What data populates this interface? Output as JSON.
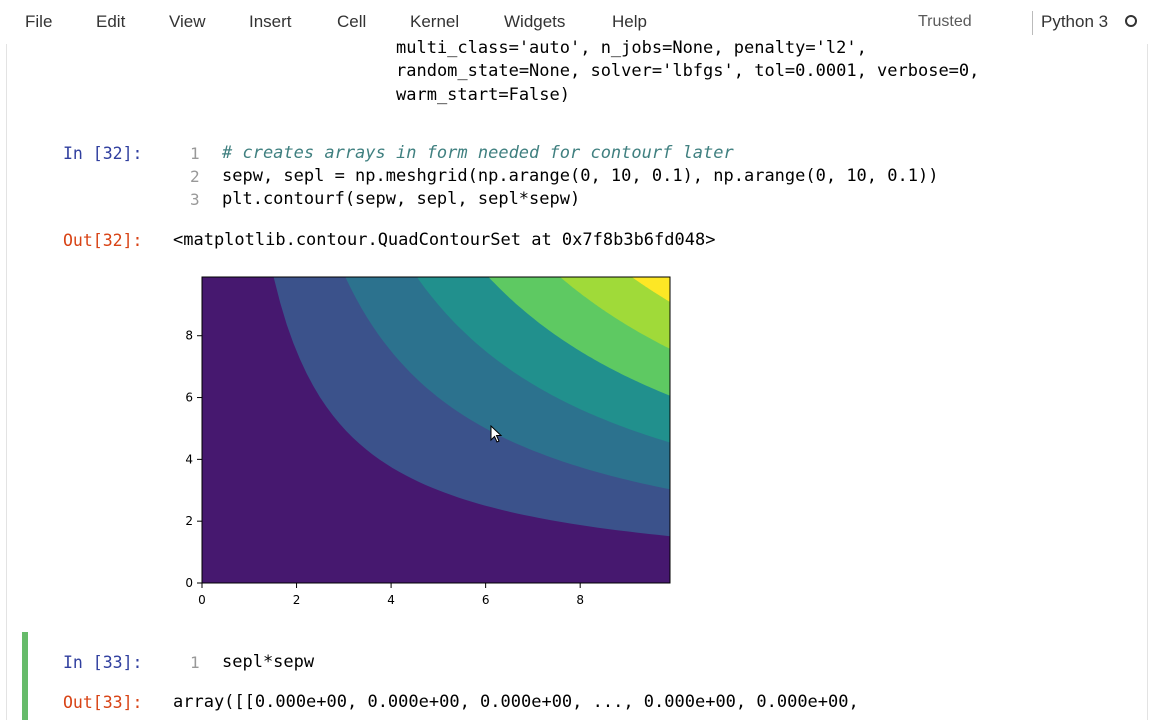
{
  "menu": {
    "items": [
      "File",
      "Edit",
      "View",
      "Insert",
      "Cell",
      "Kernel",
      "Widgets",
      "Help"
    ],
    "trusted": "Trusted",
    "kernel_name": "Python 3"
  },
  "prev_output": {
    "lines": [
      "multi_class='auto', n_jobs=None, penalty='l2',",
      "random_state=None, solver='lbfgs', tol=0.0001, verbose=0,",
      "warm_start=False)"
    ]
  },
  "cell32": {
    "in_prompt": "In [32]:",
    "line_numbers": [
      "1",
      "2",
      "3"
    ],
    "code": [
      "# creates arrays in form needed for contourf later",
      "sepw, sepl = np.meshgrid(np.arange(0, 10, 0.1), np.arange(0, 10, 0.1))",
      "plt.contourf(sepw, sepl, sepl*sepw)"
    ],
    "out_prompt": "Out[32]:",
    "out_text": "<matplotlib.contour.QuadContourSet at 0x7f8b3b6fd048>"
  },
  "cell33": {
    "in_prompt": "In [33]:",
    "line_numbers": [
      "1"
    ],
    "code": [
      "sepl*sepw"
    ],
    "out_prompt": "Out[33]:",
    "out_text": "array([[0.000e+00, 0.000e+00, 0.000e+00, ..., 0.000e+00, 0.000e+00,"
  },
  "chart_data": {
    "type": "heatmap",
    "subtype": "filled contour",
    "function": "z = x * y",
    "x_range": [
      0,
      9.9
    ],
    "y_range": [
      0,
      9.9
    ],
    "xticks": [
      "0",
      "2",
      "4",
      "6",
      "8"
    ],
    "yticks": [
      "0",
      "2",
      "4",
      "6",
      "8"
    ],
    "levels": [
      0,
      15,
      30,
      45,
      60,
      75,
      90,
      105
    ],
    "colors": [
      "#46186f",
      "#3b528b",
      "#2c728e",
      "#21908d",
      "#5ec962",
      "#a0da39",
      "#fde725"
    ],
    "grid": false
  }
}
